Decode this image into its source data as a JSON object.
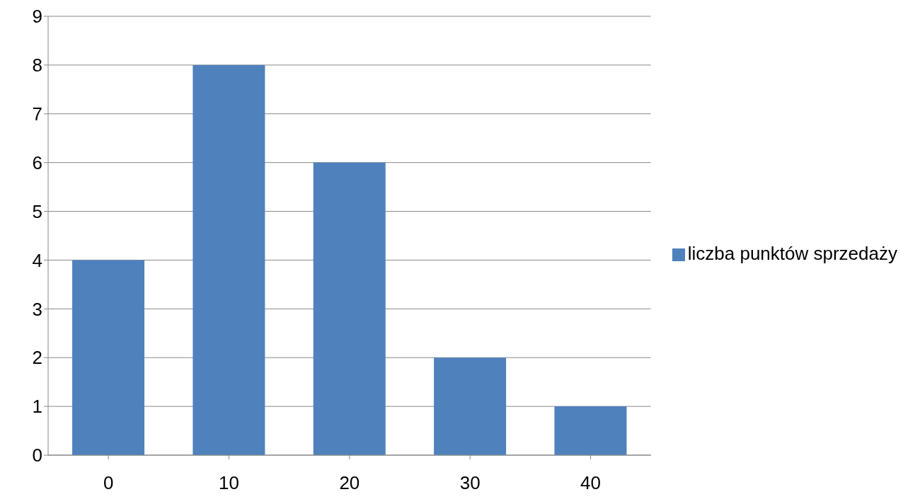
{
  "chart_data": {
    "type": "bar",
    "categories": [
      "0",
      "10",
      "20",
      "30",
      "40"
    ],
    "series": [
      {
        "name": "liczba punktów sprzedaży",
        "color": "#4f81bd",
        "values": [
          4,
          8,
          6,
          2,
          1
        ]
      }
    ],
    "ylim": [
      0,
      9
    ],
    "yticks": [
      0,
      1,
      2,
      3,
      4,
      5,
      6,
      7,
      8,
      9
    ],
    "grid": "y",
    "legend": "right"
  }
}
